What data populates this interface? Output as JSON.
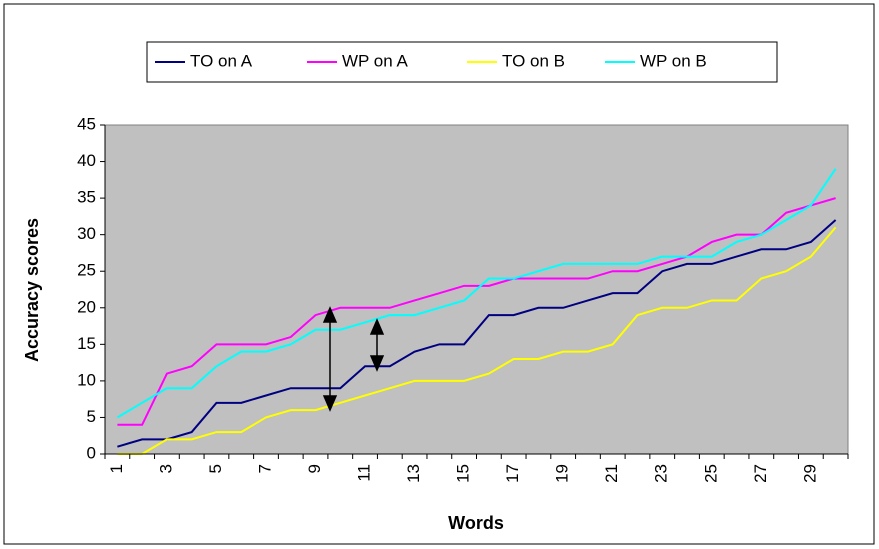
{
  "chart_data": {
    "type": "line",
    "xlabel": "Words",
    "ylabel": "Accuracy scores",
    "categories": [
      "1",
      null,
      "3",
      null,
      "5",
      null,
      "7",
      null,
      "9",
      null,
      "11",
      null,
      "13",
      null,
      "15",
      null,
      "17",
      null,
      "19",
      null,
      "21",
      null,
      "23",
      null,
      "25",
      null,
      "27",
      null,
      "29",
      null
    ],
    "series": [
      {
        "name": "TO on A",
        "color": "#000080",
        "values": [
          1,
          2,
          2,
          3,
          7,
          7,
          8,
          9,
          9,
          9,
          12,
          12,
          14,
          15,
          15,
          19,
          19,
          20,
          20,
          21,
          22,
          22,
          25,
          26,
          26,
          27,
          28,
          28,
          29,
          32
        ]
      },
      {
        "name": "WP on A",
        "color": "#ff00ff",
        "values": [
          4,
          4,
          11,
          12,
          15,
          15,
          15,
          16,
          19,
          20,
          20,
          20,
          21,
          22,
          23,
          23,
          24,
          24,
          24,
          24,
          25,
          25,
          26,
          27,
          29,
          30,
          30,
          33,
          34,
          35
        ]
      },
      {
        "name": "TO on B",
        "color": "#ffff00",
        "values": [
          0,
          0,
          2,
          2,
          3,
          3,
          5,
          6,
          6,
          7,
          8,
          9,
          10,
          10,
          10,
          11,
          13,
          13,
          14,
          14,
          15,
          19,
          20,
          20,
          21,
          21,
          24,
          25,
          27,
          31
        ]
      },
      {
        "name": "WP on B",
        "color": "#00ffff",
        "values": [
          5,
          7,
          9,
          9,
          12,
          14,
          14,
          15,
          17,
          17,
          18,
          19,
          19,
          20,
          21,
          24,
          24,
          25,
          26,
          26,
          26,
          26,
          27,
          27,
          27,
          29,
          30,
          32,
          34,
          39
        ]
      }
    ],
    "ylim": [
      0,
      45
    ],
    "yticks": [
      0,
      5,
      10,
      15,
      20,
      25,
      30,
      35,
      40,
      45
    ],
    "grid": false,
    "legend": "top"
  }
}
